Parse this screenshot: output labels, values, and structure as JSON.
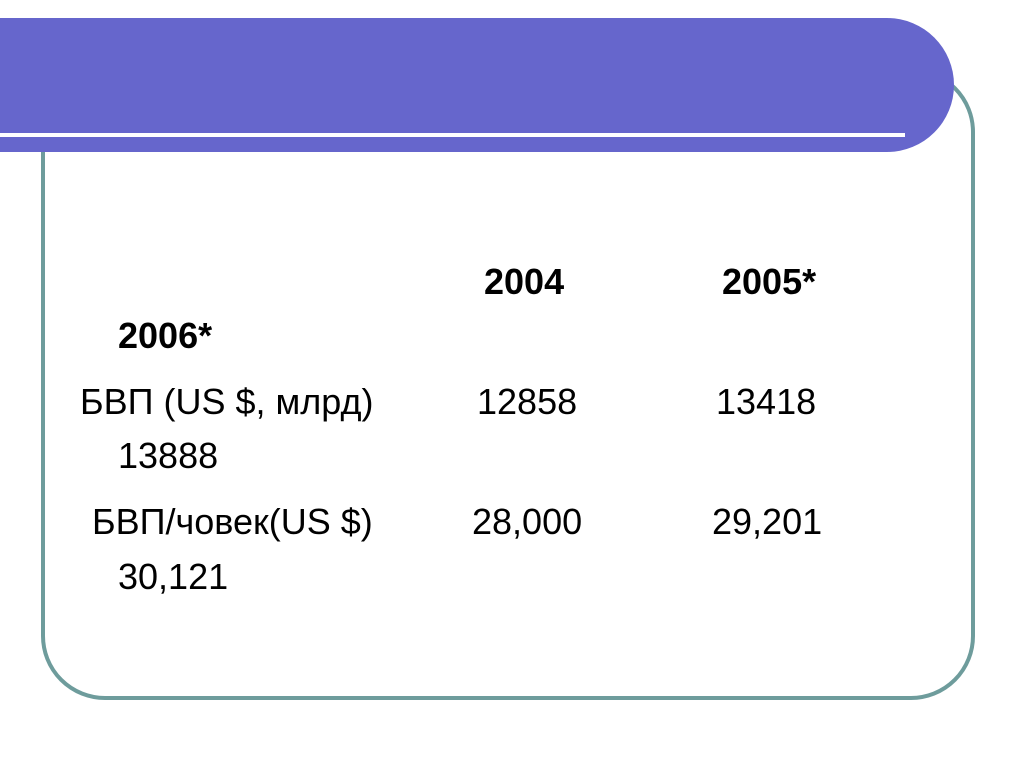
{
  "table": {
    "header": [
      "2004",
      "2005*",
      "2006*"
    ],
    "rows": [
      [
        "БВП (US $, млрд)",
        "12858",
        "13418",
        "13888"
      ],
      [
        "БВП/човек(US $)",
        "28,000",
        "29,201",
        "30,121"
      ]
    ]
  }
}
